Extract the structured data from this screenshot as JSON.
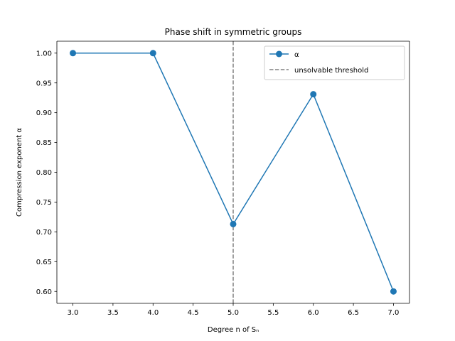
{
  "chart_data": {
    "type": "line",
    "title": "Phase shift in symmetric groups",
    "xlabel": "Degree n of Sₙ",
    "ylabel": "Compression exponent α",
    "xlim": [
      2.8,
      7.2
    ],
    "ylim": [
      0.58,
      1.02
    ],
    "xticks": [
      "3.0",
      "3.5",
      "4.0",
      "4.5",
      "5.0",
      "5.5",
      "6.0",
      "6.5",
      "7.0"
    ],
    "yticks": [
      "0.60",
      "0.65",
      "0.70",
      "0.75",
      "0.80",
      "0.85",
      "0.90",
      "0.95",
      "1.00"
    ],
    "grid": false,
    "legend_position": "top-right",
    "series": [
      {
        "name": "α",
        "color": "#1f77b4",
        "marker": "circle",
        "x": [
          3,
          4,
          5,
          6,
          7
        ],
        "y": [
          1.0,
          1.0,
          0.713,
          0.931,
          0.6
        ]
      }
    ],
    "reference_lines": [
      {
        "name": "unsolvable threshold",
        "orientation": "vertical",
        "x": 5.0,
        "color": "#808080",
        "style": "dashed"
      }
    ]
  }
}
